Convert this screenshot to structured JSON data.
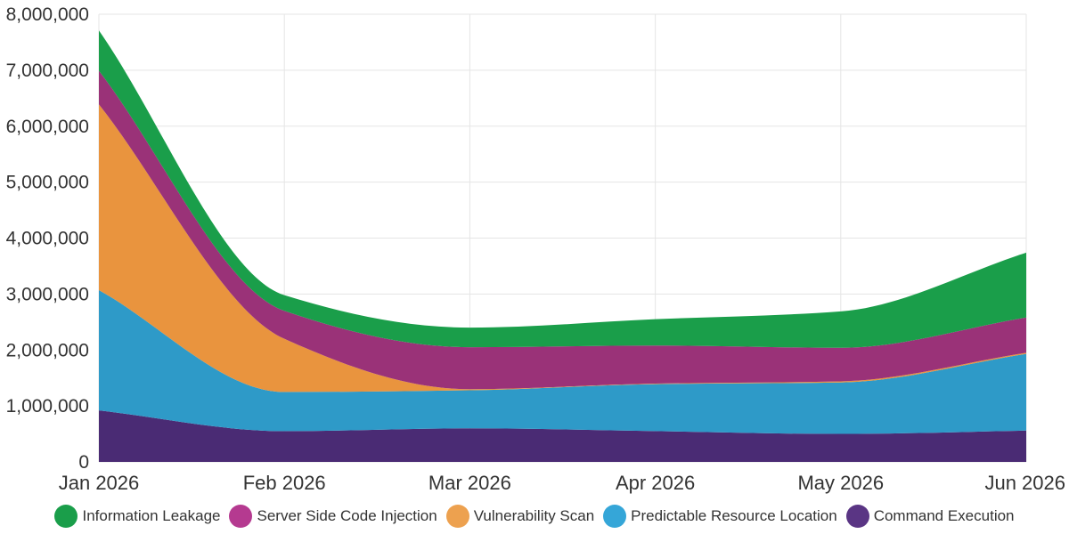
{
  "chart_data": {
    "type": "area",
    "stacked": true,
    "x": [
      "Jan 2026",
      "Feb 2026",
      "Mar 2026",
      "Apr 2026",
      "May 2026",
      "Jun 2026"
    ],
    "ylim": [
      0,
      8000000
    ],
    "yticks": [
      "0",
      "1,000,000",
      "2,000,000",
      "3,000,000",
      "4,000,000",
      "5,000,000",
      "6,000,000",
      "7,000,000",
      "8,000,000"
    ],
    "ytick_values": [
      0,
      1000000,
      2000000,
      3000000,
      4000000,
      5000000,
      6000000,
      7000000,
      8000000
    ],
    "grid": true,
    "legend_position": "bottom",
    "series": [
      {
        "name": "Command Execution",
        "color": "#4a2b74",
        "values": [
          920000,
          550000,
          600000,
          550000,
          500000,
          560000
        ]
      },
      {
        "name": "Predictable Resource Location",
        "color": "#2e9ac8",
        "values": [
          2150000,
          700000,
          680000,
          840000,
          920000,
          1370000
        ]
      },
      {
        "name": "Vulnerability Scan",
        "color": "#e9943e",
        "values": [
          3320000,
          950000,
          20000,
          10000,
          20000,
          20000
        ]
      },
      {
        "name": "Server Side Code Injection",
        "color": "#9a3278",
        "values": [
          600000,
          500000,
          750000,
          680000,
          600000,
          630000
        ]
      },
      {
        "name": "Information Leakage",
        "color": "#1a9e4a",
        "values": [
          720000,
          280000,
          350000,
          470000,
          650000,
          1160000
        ]
      }
    ]
  },
  "legend": {
    "items": [
      {
        "label": "Information Leakage",
        "color": "#1a9e4a"
      },
      {
        "label": "Server Side Code Injection",
        "color": "#b53a90"
      },
      {
        "label": "Vulnerability Scan",
        "color": "#eda14f"
      },
      {
        "label": "Predictable Resource Location",
        "color": "#35a6d8"
      },
      {
        "label": "Command Execution",
        "color": "#5a3584"
      }
    ]
  }
}
